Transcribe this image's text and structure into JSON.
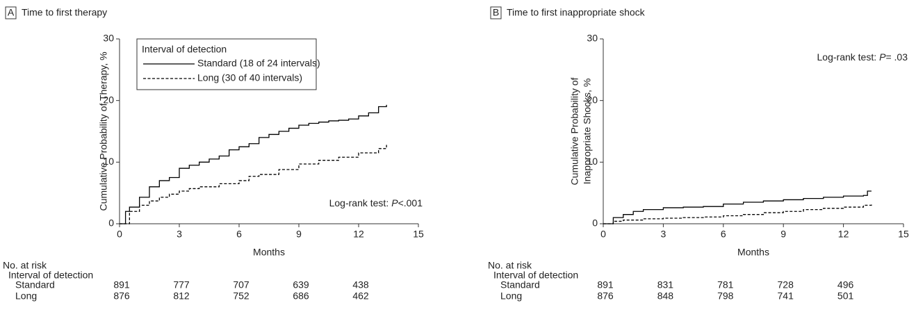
{
  "chart_data": [
    {
      "type": "line",
      "panel_label": "A",
      "title": "Time to first therapy",
      "ylabel": [
        "Cumulative Probability of Therapy, %"
      ],
      "xlabel": "Months",
      "xlim": [
        0,
        15
      ],
      "xticks": [
        0,
        3,
        6,
        9,
        12,
        15
      ],
      "ylim": [
        0,
        30
      ],
      "yticks": [
        0,
        10,
        20,
        30
      ],
      "legend_title": "Interval of detection",
      "annotation": {
        "text": "Log-rank test:",
        "p_symbol": "P",
        "p_value": "<.001",
        "corner": "lower-right"
      },
      "series": [
        {
          "name": "Standard (18 of 24 intervals)",
          "color": "#000000",
          "dash": "solid",
          "x": [
            0,
            0.3,
            0.5,
            1,
            1.5,
            2,
            2.5,
            3,
            3.5,
            4,
            4.5,
            5,
            5.5,
            6,
            6.5,
            7,
            7.5,
            8,
            8.5,
            9,
            9.5,
            10,
            10.5,
            11,
            11.5,
            12,
            12.5,
            13,
            13.4
          ],
          "values": [
            0,
            2,
            2.7,
            4.3,
            6,
            7,
            7.5,
            9,
            9.5,
            10,
            10.5,
            11,
            12,
            12.5,
            13,
            14,
            14.5,
            15,
            15.5,
            16,
            16.3,
            16.5,
            16.7,
            16.8,
            17,
            17.5,
            18,
            19,
            19.3
          ]
        },
        {
          "name": "Long (30 of 40 intervals)",
          "color": "#000000",
          "dash": "dashed",
          "x": [
            0,
            0.5,
            1,
            1.5,
            2,
            2.5,
            3,
            3.5,
            4,
            5,
            6,
            6.5,
            7,
            8,
            9,
            10,
            11,
            12,
            13,
            13.4
          ],
          "values": [
            0,
            2,
            3,
            3.7,
            4.3,
            4.8,
            5.3,
            5.7,
            6,
            6.5,
            7,
            7.7,
            8,
            8.8,
            9.7,
            10.3,
            10.8,
            11.5,
            12.2,
            12.8
          ]
        }
      ],
      "risk_table": {
        "title": "No. at risk",
        "group_title": "Interval of detection",
        "rows": [
          {
            "label": "Standard",
            "counts": [
              891,
              777,
              707,
              639,
              438
            ]
          },
          {
            "label": "Long",
            "counts": [
              876,
              812,
              752,
              686,
              462
            ]
          }
        ]
      }
    },
    {
      "type": "line",
      "panel_label": "B",
      "title": "Time to first inappropriate shock",
      "ylabel": [
        "Cumulative Probability of",
        "Inappropriate Shocks, %"
      ],
      "xlabel": "Months",
      "xlim": [
        0,
        15
      ],
      "xticks": [
        0,
        3,
        6,
        9,
        12,
        15
      ],
      "ylim": [
        0,
        30
      ],
      "yticks": [
        0,
        10,
        20,
        30
      ],
      "annotation": {
        "text": "Log-rank test:",
        "p_symbol": "P",
        "p_value": "= .03",
        "corner": "upper-right"
      },
      "series": [
        {
          "color": "#000000",
          "dash": "solid",
          "x": [
            0,
            0.5,
            1,
            1.5,
            2,
            3,
            4,
            5,
            6,
            7,
            8,
            9,
            10,
            11,
            12,
            13,
            13.2,
            13.4
          ],
          "values": [
            0,
            1,
            1.5,
            2,
            2.3,
            2.6,
            2.7,
            2.8,
            3.2,
            3.5,
            3.7,
            3.9,
            4.1,
            4.3,
            4.5,
            4.6,
            5.3,
            5.3
          ]
        },
        {
          "color": "#000000",
          "dash": "dashed",
          "x": [
            0,
            0.5,
            1,
            2,
            3,
            4,
            5,
            6,
            7,
            8,
            9,
            10,
            11,
            12,
            13,
            13.4
          ],
          "values": [
            0,
            0.4,
            0.6,
            0.8,
            0.9,
            1,
            1.1,
            1.3,
            1.5,
            1.8,
            2,
            2.3,
            2.5,
            2.7,
            3,
            3.1
          ]
        }
      ],
      "risk_table": {
        "title": "No. at risk",
        "group_title": "Interval of detection",
        "rows": [
          {
            "label": "Standard",
            "counts": [
              891,
              831,
              781,
              728,
              496
            ]
          },
          {
            "label": "Long",
            "counts": [
              876,
              848,
              798,
              741,
              501
            ]
          }
        ]
      }
    }
  ]
}
